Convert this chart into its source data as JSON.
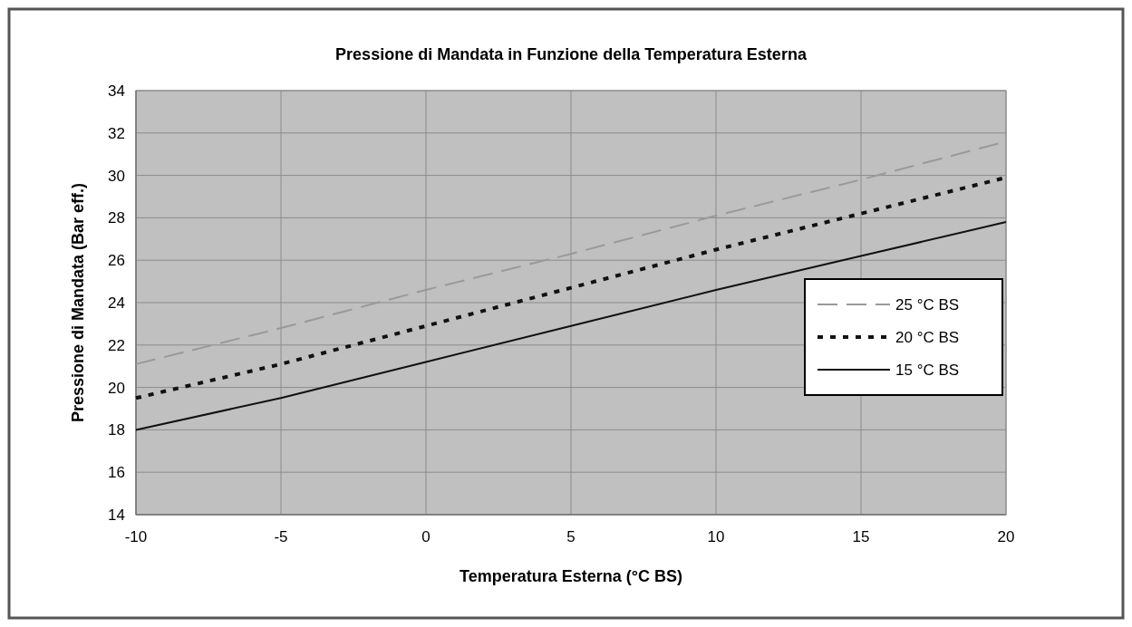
{
  "chart_data": {
    "type": "line",
    "title": "Pressione di Mandata in Funzione della Temperatura Esterna",
    "xlabel": "Temperatura Esterna (°C BS)",
    "ylabel": "Pressione di Mandata (Bar eff.)",
    "x": [
      -10,
      -5,
      0,
      5,
      10,
      15,
      20
    ],
    "series": [
      {
        "name": "25 °C BS",
        "color": "#999999",
        "line_style": "dashed",
        "values": [
          21.1,
          22.8,
          24.6,
          26.3,
          28.1,
          29.8,
          31.6
        ]
      },
      {
        "name": "20 °C BS",
        "color": "#111111",
        "line_style": "dotted",
        "values": [
          19.5,
          21.1,
          22.9,
          24.7,
          26.5,
          28.2,
          29.9
        ]
      },
      {
        "name": "15 °C BS",
        "color": "#111111",
        "line_style": "solid",
        "values": [
          18.0,
          19.5,
          21.2,
          22.9,
          24.6,
          26.2,
          27.8
        ]
      }
    ],
    "xlim": [
      -10,
      20
    ],
    "xticks": [
      -10,
      -5,
      0,
      5,
      10,
      15,
      20
    ],
    "ylim": [
      14,
      34
    ],
    "yticks": [
      14,
      16,
      18,
      20,
      22,
      24,
      26,
      28,
      30,
      32,
      34
    ],
    "grid": true,
    "legend": "right"
  }
}
